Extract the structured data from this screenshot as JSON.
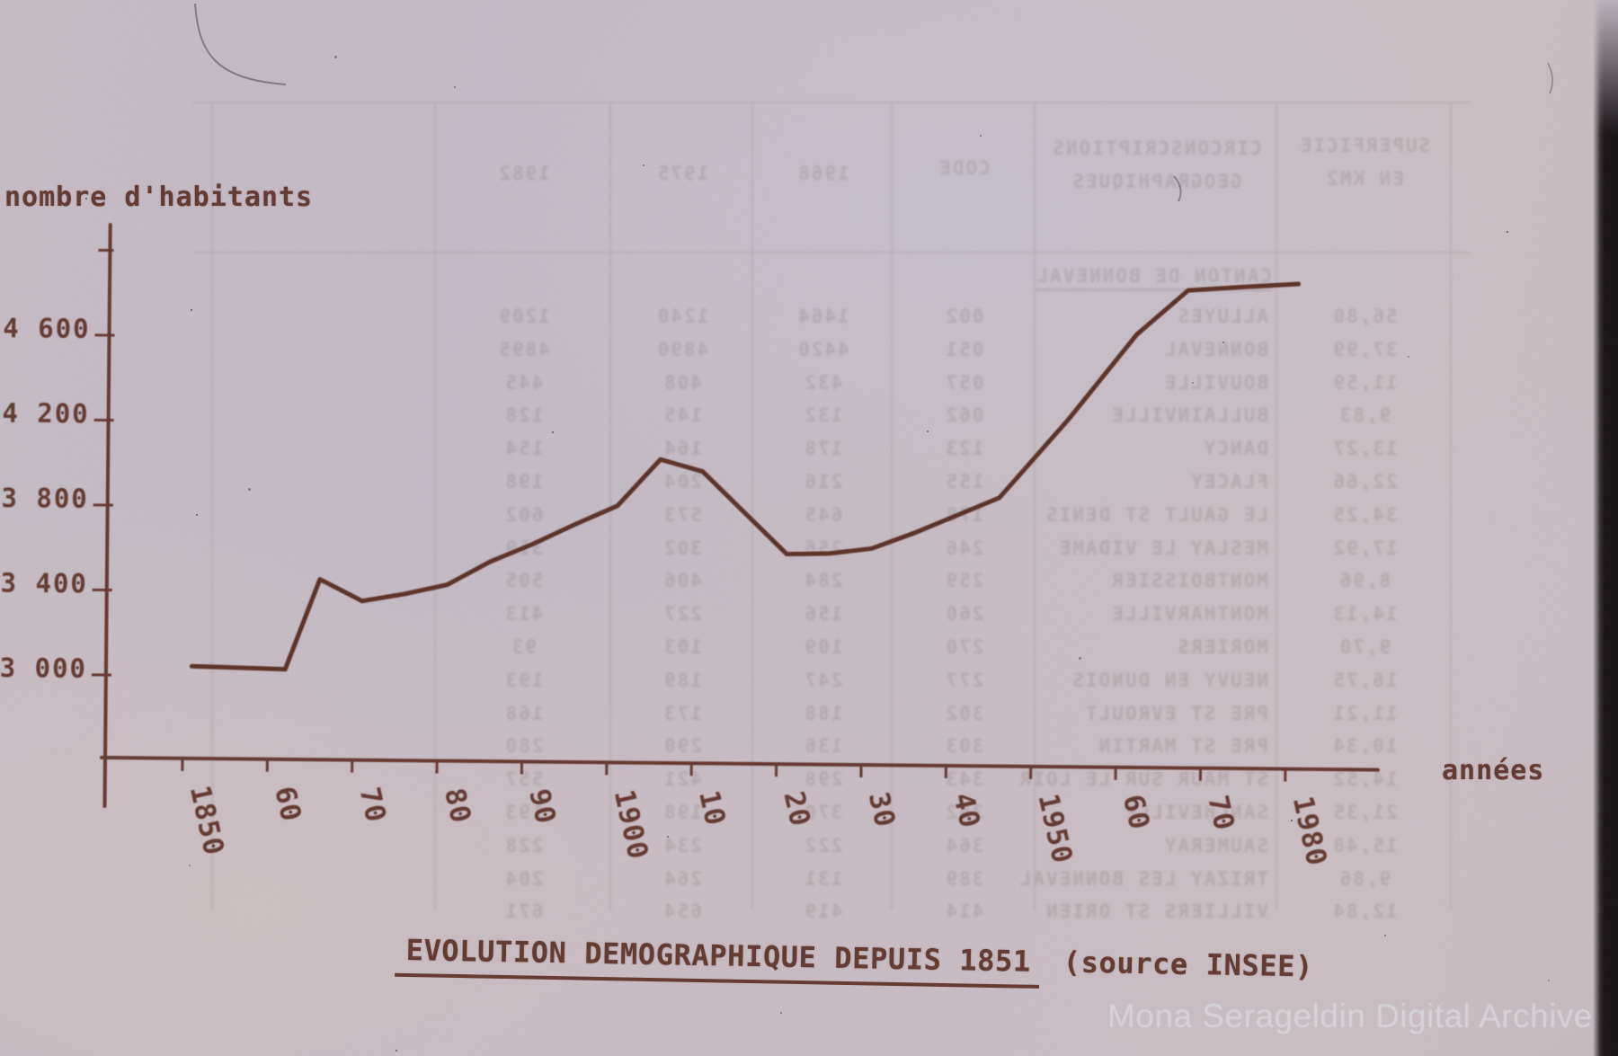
{
  "frame": {
    "paper_hex": "#cfc6cd",
    "ink_hex": "#5e3327",
    "curve_hex": "#54291d",
    "film_edge_hex": "#0b0709"
  },
  "chart_data": {
    "type": "line",
    "title": "EVOLUTION DEMOGRAPHIQUE DEPUIS 1851",
    "source_note": "(source INSEE)",
    "ylabel": "nombre d'habitants",
    "xlabel": "années",
    "grid": false,
    "legend": null,
    "xlim": [
      1840,
      1991
    ],
    "ylim": [
      2610,
      5120
    ],
    "x_tick_labels": [
      "1850",
      "60",
      "70",
      "80",
      "90",
      "1900",
      "10",
      "20",
      "30",
      "40",
      "1950",
      "60",
      "70",
      "1980"
    ],
    "x_tick_years": [
      1850,
      1860,
      1870,
      1880,
      1890,
      1900,
      1910,
      1920,
      1930,
      1940,
      1950,
      1960,
      1970,
      1980
    ],
    "y_tick_values": [
      4600,
      4200,
      3800,
      3400,
      3000
    ],
    "y_tick_labels": [
      "4 600",
      "4 200",
      "3 800",
      "3 400",
      "3 000"
    ],
    "y_unlabeled_tick_value": 5000,
    "series": [
      {
        "name": "nombre d'habitants",
        "points": [
          [
            1851,
            3045
          ],
          [
            1862,
            3035
          ],
          [
            1866,
            3460
          ],
          [
            1871,
            3360
          ],
          [
            1876,
            3395
          ],
          [
            1881,
            3440
          ],
          [
            1886,
            3550
          ],
          [
            1891,
            3635
          ],
          [
            1896,
            3730
          ],
          [
            1901,
            3820
          ],
          [
            1906,
            4040
          ],
          [
            1911,
            3985
          ],
          [
            1921,
            3600
          ],
          [
            1926,
            3605
          ],
          [
            1931,
            3630
          ],
          [
            1936,
            3705
          ],
          [
            1946,
            3875
          ],
          [
            1954,
            4245
          ],
          [
            1962,
            4650
          ],
          [
            1968,
            4860
          ],
          [
            1975,
            4880
          ],
          [
            1981,
            4895
          ]
        ]
      }
    ]
  },
  "watermark": {
    "text": "Mona Serageldin Digital Archive"
  },
  "ghost_table": {
    "note": "faint mirrored ink bleed-through of a data table on the reverse side",
    "header": {
      "geo_line1": "CIRCONSCRIPTIONS",
      "geo_line2": "GEOGRAPHIQUES",
      "code": "CODE",
      "y1968": "1968",
      "y1975": "1975",
      "y1982": "1982",
      "sup_line1": "SUPERFICIE",
      "sup_line2": "EN KM2"
    },
    "group_row": "CANTON DE BONNEVAL",
    "rows": [
      [
        "ALLUYES",
        "002",
        "1464",
        "1240",
        "1209",
        "56,80"
      ],
      [
        "BONNEVAL",
        "051",
        "4420",
        "4890",
        "4895",
        "37,99"
      ],
      [
        "BOUVILLE",
        "057",
        "432",
        "408",
        "445",
        "11,59"
      ],
      [
        "BULLAINVILLE",
        "062",
        "132",
        "145",
        "128",
        "9,83"
      ],
      [
        "DANCY",
        "123",
        "178",
        "164",
        "154",
        "13,27"
      ],
      [
        "FLACEY",
        "155",
        "216",
        "204",
        "198",
        "22,66"
      ],
      [
        "LE GAULT ST DENIS",
        "178",
        "645",
        "573",
        "602",
        "34,25"
      ],
      [
        "MESLAY LE VIDAME",
        "246",
        "256",
        "302",
        "319",
        "17,92"
      ],
      [
        "MONTBOISSIER",
        "259",
        "284",
        "406",
        "505",
        "8,96"
      ],
      [
        "MONTHARVILLE",
        "260",
        "156",
        "227",
        "413",
        "14,13"
      ],
      [
        "MORIERS",
        "270",
        "109",
        "103",
        "93",
        "9,70"
      ],
      [
        "NEUVY EN DUNOIS",
        "277",
        "247",
        "189",
        "193",
        "16,75"
      ],
      [
        "PRE ST EVROULT",
        "302",
        "188",
        "173",
        "168",
        "11,21"
      ],
      [
        "PRE ST MARTIN",
        "303",
        "136",
        "290",
        "280",
        "10,34"
      ],
      [
        "ST MAUR SUR LE LOIR",
        "343",
        "298",
        "421",
        "557",
        "14,52"
      ],
      [
        "SANCHEVILLE",
        "362",
        "370",
        "198",
        "193",
        "21,35"
      ],
      [
        "SAUMERAY",
        "364",
        "222",
        "234",
        "228",
        "15,48"
      ],
      [
        "TRIZAY LES BONNEVAL",
        "389",
        "131",
        "264",
        "204",
        "9,86"
      ],
      [
        "VILLIERS ST ORIEN",
        "414",
        "419",
        "654",
        "671",
        "12,84"
      ]
    ]
  }
}
